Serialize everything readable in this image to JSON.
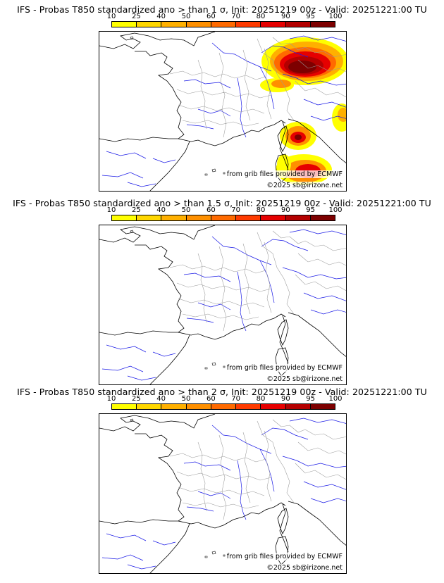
{
  "colorbar": {
    "ticks": [
      "10",
      "25",
      "40",
      "50",
      "60",
      "70",
      "80",
      "90",
      "95",
      "100"
    ],
    "colors": [
      "#ffff00",
      "#ffd700",
      "#ffb000",
      "#ff9000",
      "#ff6a00",
      "#ff3b00",
      "#e60000",
      "#b40000",
      "#7d0000"
    ]
  },
  "panels": [
    {
      "title": "IFS - Probas T850  standardized ano > than 1 σ, Init: 20251219 00z - Valid: 20251221:00 TU",
      "source_label": "from grib files provided by ECMWF",
      "copyright_label": "©2025 sb@irizone.net",
      "has_anomaly": true
    },
    {
      "title": "IFS - Probas T850  standardized ano > than 1.5 σ, Init: 20251219 00z - Valid: 20251221:00 TU",
      "source_label": "from grib files provided by ECMWF",
      "copyright_label": "©2025 sb@irizone.net",
      "has_anomaly": false
    },
    {
      "title": "IFS - Probas T850  standardized ano > than 2 σ, Init: 20251219 00z - Valid: 20251221:00 TU",
      "source_label": "from grib files provided by ECMWF",
      "copyright_label": "©2025 sb@irizone.net",
      "has_anomaly": false
    }
  ]
}
